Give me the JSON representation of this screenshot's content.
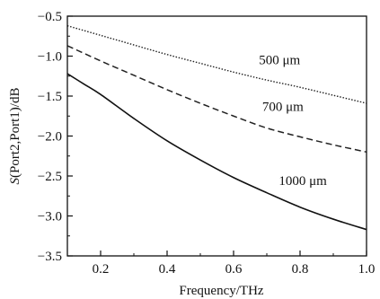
{
  "chart_data": {
    "type": "line",
    "title": "",
    "xlabel": "Frequency/THz",
    "ylabel_italic": "S",
    "ylabel_rest": "(Port2,Port1)/dB",
    "xlim": [
      0.1,
      1.0
    ],
    "ylim": [
      -3.5,
      -0.5
    ],
    "x_ticks": [
      0.2,
      0.4,
      0.6,
      0.8,
      1.0
    ],
    "x_tick_labels": [
      "0.2",
      "0.4",
      "0.6",
      "0.8",
      "1.0"
    ],
    "y_ticks": [
      -0.5,
      -1.0,
      -1.5,
      -2.0,
      -2.5,
      -3.0,
      -3.5
    ],
    "y_tick_labels": [
      "-0.5",
      "-1.0",
      "-1.5",
      "-2.0",
      "-2.5",
      "-3.0",
      "-3.5"
    ],
    "grid": false,
    "series": [
      {
        "name": "500 μm",
        "style": "dotted",
        "color": "#222222",
        "x": [
          0.1,
          0.2,
          0.3,
          0.4,
          0.5,
          0.6,
          0.7,
          0.8,
          0.9,
          1.0
        ],
        "y": [
          -0.62,
          -0.74,
          -0.86,
          -0.98,
          -1.09,
          -1.2,
          -1.3,
          -1.39,
          -1.49,
          -1.59
        ]
      },
      {
        "name": "700 μm",
        "style": "dashed",
        "color": "#222222",
        "x": [
          0.1,
          0.2,
          0.3,
          0.4,
          0.5,
          0.6,
          0.7,
          0.8,
          0.9,
          1.0
        ],
        "y": [
          -0.87,
          -1.06,
          -1.24,
          -1.42,
          -1.59,
          -1.75,
          -1.9,
          -2.01,
          -2.11,
          -2.2
        ]
      },
      {
        "name": "1000 μm",
        "style": "solid",
        "color": "#111111",
        "x": [
          0.1,
          0.15,
          0.2,
          0.3,
          0.4,
          0.5,
          0.6,
          0.7,
          0.8,
          0.9,
          1.0
        ],
        "y": [
          -1.22,
          -1.35,
          -1.48,
          -1.78,
          -2.06,
          -2.3,
          -2.52,
          -2.71,
          -2.89,
          -3.04,
          -3.17
        ]
      }
    ],
    "annotations": [
      {
        "text": "500 μm",
        "series": 0
      },
      {
        "text": "700 μm",
        "series": 1
      },
      {
        "text": "1000 μm",
        "series": 2
      }
    ]
  }
}
